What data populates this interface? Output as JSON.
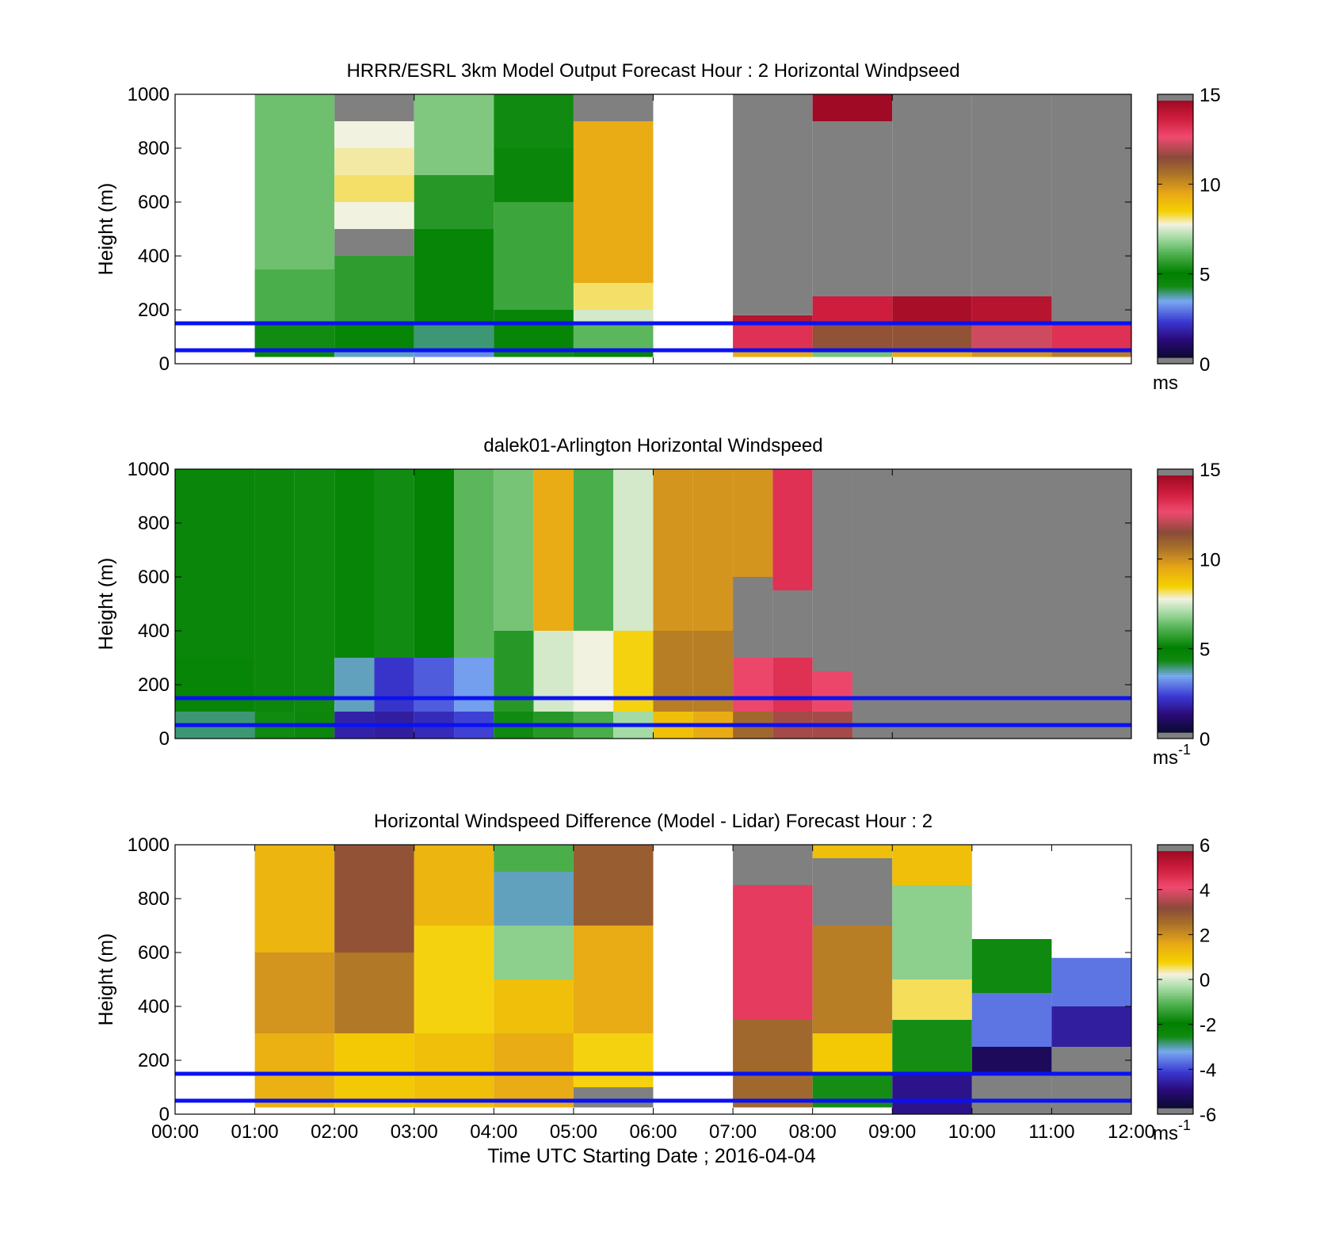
{
  "chart_data": [
    {
      "type": "heatmap",
      "title": "HRRR/ESRL 3km Model Output   Forecast Hour : 2 Horizontal Windpseed",
      "ylabel": "Height (m)",
      "xlabel": "",
      "xlim": [
        "00:00",
        "12:00"
      ],
      "ylim": [
        0,
        1000
      ],
      "yticks": [
        "0",
        "200",
        "400",
        "600",
        "800",
        "1000"
      ],
      "xticks": [],
      "colorbar": {
        "min": 0,
        "max": 15,
        "ticks": [
          "0",
          "5",
          "10",
          "15"
        ],
        "unit": "ms",
        "unit_sup": ""
      },
      "reference_lines_m": [
        50,
        150
      ],
      "columns_hour": [
        {
          "start": 0.0,
          "end": 1.0,
          "bands": []
        },
        {
          "start": 1.0,
          "end": 2.0,
          "bands": [
            [
              25,
              50,
              4.5
            ],
            [
              50,
              150,
              5.2
            ],
            [
              150,
              350,
              6.0
            ],
            [
              350,
              1000,
              6.4
            ]
          ]
        },
        {
          "start": 2.0,
          "end": 3.0,
          "bands": [
            [
              25,
              50,
              3.5
            ],
            [
              50,
              150,
              4.6
            ],
            [
              150,
              400,
              5.6
            ],
            [
              400,
              500,
              "nan"
            ],
            [
              500,
              600,
              7.8
            ],
            [
              600,
              700,
              8.2
            ],
            [
              700,
              800,
              8.0
            ],
            [
              800,
              900,
              7.8
            ],
            [
              900,
              1000,
              "nan"
            ],
            [
              1000,
              1000,
              7.2
            ]
          ]
        },
        {
          "start": 3.0,
          "end": 4.0,
          "bands": [
            [
              25,
              50,
              3.0
            ],
            [
              50,
              150,
              3.8
            ],
            [
              150,
              500,
              4.6
            ],
            [
              500,
              700,
              5.5
            ],
            [
              700,
              1000,
              6.6
            ]
          ]
        },
        {
          "start": 4.0,
          "end": 5.0,
          "bands": [
            [
              25,
              50,
              4.2
            ],
            [
              50,
              200,
              4.6
            ],
            [
              200,
              600,
              5.8
            ],
            [
              600,
              800,
              4.5
            ],
            [
              800,
              1000,
              4.2
            ]
          ]
        },
        {
          "start": 5.0,
          "end": 6.0,
          "bands": [
            [
              25,
              50,
              4.6
            ],
            [
              50,
              150,
              6.2
            ],
            [
              150,
              200,
              7.5
            ],
            [
              200,
              300,
              8.2
            ],
            [
              300,
              900,
              9.5
            ],
            [
              900,
              1000,
              "nan"
            ]
          ]
        },
        {
          "start": 6.0,
          "end": 7.0,
          "bands": []
        },
        {
          "start": 7.0,
          "end": 8.0,
          "bands": [
            [
              25,
              50,
              9.5
            ],
            [
              50,
              150,
              13.5
            ],
            [
              150,
              180,
              14.5
            ],
            [
              180,
              1000,
              "nan"
            ]
          ]
        },
        {
          "start": 8.0,
          "end": 9.0,
          "bands": [
            [
              25,
              50,
              6.5
            ],
            [
              50,
              150,
              11.5
            ],
            [
              150,
              250,
              14.0
            ],
            [
              250,
              900,
              "nan"
            ],
            [
              900,
              1000,
              15.0
            ]
          ]
        },
        {
          "start": 9.0,
          "end": 10.0,
          "bands": [
            [
              25,
              50,
              9.5
            ],
            [
              50,
              150,
              11.5
            ],
            [
              150,
              250,
              14.8
            ],
            [
              250,
              1000,
              "nan"
            ]
          ]
        },
        {
          "start": 10.0,
          "end": 11.0,
          "bands": [
            [
              25,
              50,
              10.0
            ],
            [
              50,
              150,
              12.5
            ],
            [
              150,
              250,
              14.5
            ],
            [
              250,
              1000,
              "nan"
            ]
          ]
        },
        {
          "start": 11.0,
          "end": 12.0,
          "bands": [
            [
              25,
              50,
              10.5
            ],
            [
              50,
              150,
              13.5
            ],
            [
              150,
              1000,
              "nan"
            ]
          ]
        }
      ]
    },
    {
      "type": "heatmap",
      "title": "dalek01-Arlington  Horizontal Windspeed",
      "ylabel": "Height (m)",
      "xlabel": "",
      "xlim": [
        "00:00",
        "12:00"
      ],
      "ylim": [
        0,
        1000
      ],
      "yticks": [
        "0",
        "200",
        "400",
        "600",
        "800",
        "1000"
      ],
      "xticks": [],
      "colorbar": {
        "min": 0,
        "max": 15,
        "ticks": [
          "0",
          "5",
          "10",
          "15"
        ],
        "unit": "ms",
        "unit_sup": "-1"
      },
      "reference_lines_m": [
        50,
        150
      ],
      "columns_hour": [
        {
          "start": 0.0,
          "end": 1.0,
          "bands": [
            [
              0,
              100,
              3.8
            ],
            [
              100,
              300,
              4.6
            ],
            [
              300,
              1000,
              4.5
            ]
          ]
        },
        {
          "start": 1.0,
          "end": 1.5,
          "bands": [
            [
              0,
              100,
              4.2
            ],
            [
              100,
              1000,
              4.4
            ]
          ]
        },
        {
          "start": 1.5,
          "end": 2.0,
          "bands": [
            [
              0,
              100,
              4.4
            ],
            [
              100,
              1000,
              4.3
            ]
          ]
        },
        {
          "start": 2.0,
          "end": 2.5,
          "bands": [
            [
              0,
              100,
              1.6
            ],
            [
              100,
              300,
              3.5
            ],
            [
              300,
              1000,
              4.6
            ]
          ]
        },
        {
          "start": 2.5,
          "end": 3.0,
          "bands": [
            [
              0,
              100,
              1.5
            ],
            [
              100,
              300,
              2.0
            ],
            [
              300,
              1000,
              5.2
            ]
          ]
        },
        {
          "start": 3.0,
          "end": 3.5,
          "bands": [
            [
              0,
              100,
              1.8
            ],
            [
              100,
              300,
              2.5
            ],
            [
              300,
              1000,
              4.8
            ]
          ]
        },
        {
          "start": 3.5,
          "end": 4.0,
          "bands": [
            [
              0,
              100,
              2.2
            ],
            [
              100,
              300,
              3.2
            ],
            [
              300,
              1000,
              6.2
            ]
          ]
        },
        {
          "start": 4.0,
          "end": 4.5,
          "bands": [
            [
              0,
              100,
              4.2
            ],
            [
              100,
              400,
              5.5
            ],
            [
              400,
              1000,
              6.5
            ]
          ]
        },
        {
          "start": 4.5,
          "end": 5.0,
          "bands": [
            [
              0,
              100,
              5.5
            ],
            [
              100,
              400,
              7.5
            ],
            [
              400,
              1000,
              9.5
            ]
          ]
        },
        {
          "start": 5.0,
          "end": 5.5,
          "bands": [
            [
              0,
              100,
              6.0
            ],
            [
              100,
              400,
              7.8
            ],
            [
              400,
              1000,
              6.0
            ]
          ]
        },
        {
          "start": 5.5,
          "end": 6.0,
          "bands": [
            [
              0,
              100,
              7.0
            ],
            [
              100,
              400,
              8.5
            ],
            [
              400,
              1000,
              7.5
            ]
          ]
        },
        {
          "start": 6.0,
          "end": 6.5,
          "bands": [
            [
              0,
              100,
              9.0
            ],
            [
              100,
              400,
              10.5
            ],
            [
              400,
              1000,
              10.0
            ]
          ]
        },
        {
          "start": 6.5,
          "end": 7.0,
          "bands": [
            [
              0,
              100,
              9.5
            ],
            [
              100,
              400,
              10.5
            ],
            [
              400,
              1000,
              10.0
            ]
          ]
        },
        {
          "start": 7.0,
          "end": 7.5,
          "bands": [
            [
              0,
              100,
              11.0
            ],
            [
              100,
              300,
              13.0
            ],
            [
              300,
              600,
              "nan"
            ],
            [
              600,
              1000,
              10.0
            ]
          ]
        },
        {
          "start": 7.5,
          "end": 8.0,
          "bands": [
            [
              0,
              100,
              12.0
            ],
            [
              100,
              300,
              13.5
            ],
            [
              300,
              550,
              "nan"
            ],
            [
              550,
              1000,
              13.5
            ]
          ]
        },
        {
          "start": 8.0,
          "end": 8.5,
          "bands": [
            [
              0,
              100,
              12.0
            ],
            [
              100,
              250,
              13.0
            ],
            [
              250,
              1000,
              "nan"
            ]
          ]
        },
        {
          "start": 8.5,
          "end": 12.0,
          "bands": [
            [
              0,
              1000,
              "nan"
            ]
          ]
        }
      ]
    },
    {
      "type": "heatmap",
      "title": "Horizontal Windspeed Difference (Model - Lidar) Forecast Hour : 2",
      "ylabel": "Height (m)",
      "xlabel": "Time UTC  Starting Date ; 2016-04-04",
      "xlim": [
        "00:00",
        "12:00"
      ],
      "ylim": [
        0,
        1000
      ],
      "yticks": [
        "0",
        "200",
        "400",
        "600",
        "800",
        "1000"
      ],
      "xticks": [
        "00:00",
        "01:00",
        "02:00",
        "03:00",
        "04:00",
        "05:00",
        "06:00",
        "07:00",
        "08:00",
        "09:00",
        "10:00",
        "11:00",
        "12:00"
      ],
      "colorbar": {
        "min": -6,
        "max": 6,
        "ticks": [
          "-6",
          "-4",
          "-2",
          "0",
          "2",
          "4",
          "6"
        ],
        "unit": "ms",
        "unit_sup": "-1"
      },
      "reference_lines_m": [
        50,
        150
      ],
      "columns_hour": [
        {
          "start": 0.0,
          "end": 1.0,
          "bands": []
        },
        {
          "start": 1.0,
          "end": 2.0,
          "bands": [
            [
              25,
              300,
              1.5
            ],
            [
              300,
              600,
              2.0
            ],
            [
              600,
              1000,
              1.4
            ]
          ]
        },
        {
          "start": 2.0,
          "end": 3.0,
          "bands": [
            [
              25,
              300,
              1.0
            ],
            [
              300,
              600,
              2.5
            ],
            [
              600,
              1000,
              3.2
            ]
          ]
        },
        {
          "start": 3.0,
          "end": 4.0,
          "bands": [
            [
              25,
              300,
              1.2
            ],
            [
              300,
              700,
              0.8
            ],
            [
              700,
              1000,
              1.4
            ]
          ]
        },
        {
          "start": 4.0,
          "end": 5.0,
          "bands": [
            [
              25,
              300,
              1.6
            ],
            [
              300,
              500,
              1.2
            ],
            [
              500,
              700,
              -0.6
            ],
            [
              700,
              900,
              -3.2
            ],
            [
              900,
              1000,
              -1.2
            ]
          ]
        },
        {
          "start": 5.0,
          "end": 6.0,
          "bands": [
            [
              25,
              100,
              "nan"
            ],
            [
              100,
              300,
              0.8
            ],
            [
              300,
              700,
              1.6
            ],
            [
              700,
              1000,
              3.0
            ]
          ]
        },
        {
          "start": 6.0,
          "end": 7.0,
          "bands": []
        },
        {
          "start": 7.0,
          "end": 8.0,
          "bands": [
            [
              25,
              350,
              2.8
            ],
            [
              350,
              850,
              4.6
            ],
            [
              850,
              1000,
              "nan"
            ]
          ]
        },
        {
          "start": 8.0,
          "end": 9.0,
          "bands": [
            [
              25,
              150,
              -1.8
            ],
            [
              150,
              300,
              1.0
            ],
            [
              300,
              700,
              2.4
            ],
            [
              700,
              950,
              "nan"
            ],
            [
              950,
              1000,
              1.2
            ]
          ]
        },
        {
          "start": 9.0,
          "end": 10.0,
          "bands": [
            [
              0,
              150,
              -5.0
            ],
            [
              150,
              350,
              -1.8
            ],
            [
              350,
              500,
              0.6
            ],
            [
              500,
              850,
              -0.6
            ],
            [
              850,
              1000,
              1.2
            ]
          ]
        },
        {
          "start": 10.0,
          "end": 11.0,
          "bands": [
            [
              0,
              150,
              "nan"
            ],
            [
              150,
              250,
              -5.5
            ],
            [
              250,
              450,
              -3.8
            ],
            [
              450,
              650,
              -2.6
            ]
          ]
        },
        {
          "start": 11.0,
          "end": 12.0,
          "bands": [
            [
              0,
              50,
              "nan"
            ],
            [
              50,
              250,
              "nan"
            ],
            [
              250,
              400,
              -4.8
            ],
            [
              400,
              580,
              -3.8
            ]
          ]
        }
      ]
    }
  ]
}
